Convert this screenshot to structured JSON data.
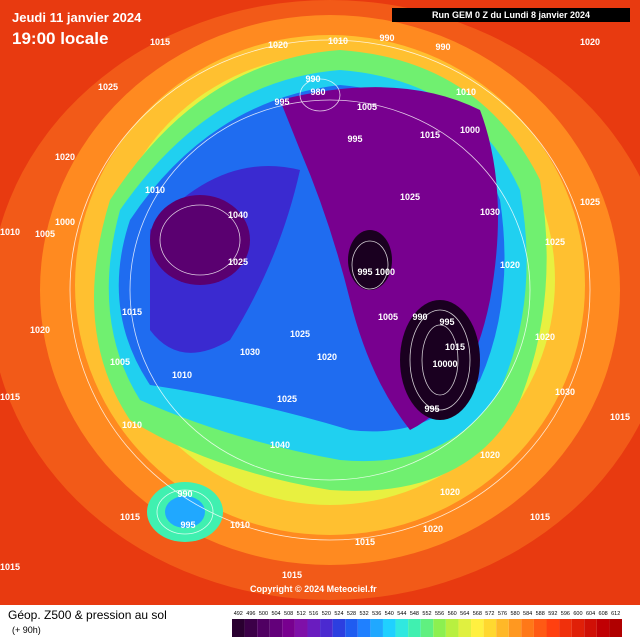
{
  "header": {
    "date": "Jeudi 11 janvier 2024",
    "time": "19:00 locale",
    "run": "Run GEM 0 Z du Lundi 8 janvier 2024"
  },
  "footer": {
    "title": "Géop. Z500 & pression au sol",
    "lead": "(+ 90h)",
    "copyright": "Copyright © 2024 Meteociel.fr"
  },
  "scale": {
    "labels": [
      "492",
      "496",
      "500",
      "504",
      "508",
      "512",
      "516",
      "520",
      "524",
      "528",
      "532",
      "536",
      "540",
      "544",
      "548",
      "552",
      "556",
      "560",
      "564",
      "568",
      "572",
      "576",
      "580",
      "584",
      "588",
      "592",
      "596",
      "600",
      "604",
      "608",
      "612"
    ],
    "colors": [
      "#2a0030",
      "#3c0048",
      "#500062",
      "#63007a",
      "#78008f",
      "#7f10a8",
      "#6a1cbf",
      "#4b2ad0",
      "#2c3fe0",
      "#1f5cf0",
      "#1f80ff",
      "#20a8ff",
      "#20d0ff",
      "#30e8e0",
      "#40f0b0",
      "#60f080",
      "#8cf050",
      "#b8f040",
      "#e0f040",
      "#fff040",
      "#ffd830",
      "#ffb828",
      "#ff9820",
      "#ff7818",
      "#ff5a14",
      "#ff4010",
      "#f0300c",
      "#e02008",
      "#d01006",
      "#c00004",
      "#b00000"
    ]
  },
  "isobars": [
    "1015",
    "1020",
    "1010",
    "990",
    "990",
    "1020",
    "1025",
    "990",
    "980",
    "995",
    "1005",
    "1010",
    "1000",
    "1015",
    "995",
    "1020",
    "1010",
    "1000",
    "1005",
    "1040",
    "1025",
    "1025",
    "1030",
    "995",
    "1000",
    "1020",
    "1025",
    "1025",
    "1015",
    "1020",
    "1005",
    "1010",
    "1030",
    "1025",
    "1020",
    "1005",
    "990",
    "995",
    "10000",
    "995",
    "1015",
    "1020",
    "1030",
    "1010",
    "1040",
    "1025",
    "1020",
    "1020",
    "1015",
    "990",
    "995",
    "1010",
    "1015",
    "1015",
    "1020",
    "1015",
    "1010",
    "1015",
    "1015",
    "1015"
  ]
}
